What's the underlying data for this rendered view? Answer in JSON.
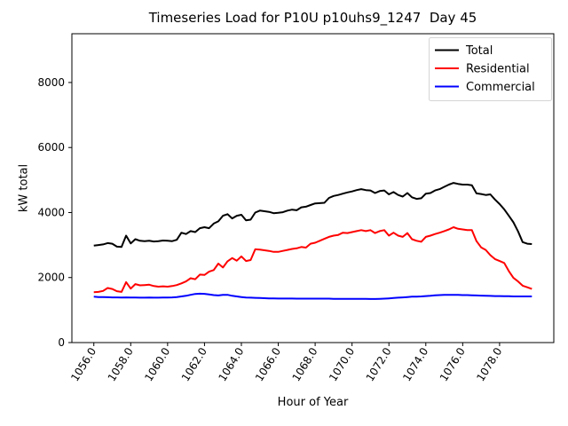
{
  "chart_data": {
    "type": "line",
    "title": "Timeseries Load for P10U p10uhs9_1247  Day 45",
    "xlabel": "Hour of Year",
    "ylabel": "kW total",
    "xlim": [
      1054.81,
      1080.94
    ],
    "ylim": [
      0,
      9500
    ],
    "grid": false,
    "legend_position": "upper-right",
    "x_tick_values": [
      1056,
      1058,
      1060,
      1062,
      1064,
      1066,
      1068,
      1070,
      1072,
      1074,
      1076,
      1078
    ],
    "x_tick_labels": [
      "1056.0",
      "1058.0",
      "1060.0",
      "1062.0",
      "1064.0",
      "1066.0",
      "1068.0",
      "1070.0",
      "1072.0",
      "1074.0",
      "1076.0",
      "1078.0"
    ],
    "y_tick_values": [
      0,
      2000,
      4000,
      6000,
      8000
    ],
    "y_tick_labels": [
      "0",
      "2000",
      "4000",
      "6000",
      "8000"
    ],
    "x": [
      1056.0,
      1056.25,
      1056.5,
      1056.75,
      1057.0,
      1057.25,
      1057.5,
      1057.75,
      1058.0,
      1058.25,
      1058.5,
      1058.75,
      1059.0,
      1059.25,
      1059.5,
      1059.75,
      1060.0,
      1060.25,
      1060.5,
      1060.75,
      1061.0,
      1061.25,
      1061.5,
      1061.75,
      1062.0,
      1062.25,
      1062.5,
      1062.75,
      1063.0,
      1063.25,
      1063.5,
      1063.75,
      1064.0,
      1064.25,
      1064.5,
      1064.75,
      1065.0,
      1065.25,
      1065.5,
      1065.75,
      1066.0,
      1066.25,
      1066.5,
      1066.75,
      1067.0,
      1067.25,
      1067.5,
      1067.75,
      1068.0,
      1068.25,
      1068.5,
      1068.75,
      1069.0,
      1069.25,
      1069.5,
      1069.75,
      1070.0,
      1070.25,
      1070.5,
      1070.75,
      1071.0,
      1071.25,
      1071.5,
      1071.75,
      1072.0,
      1072.25,
      1072.5,
      1072.75,
      1073.0,
      1073.25,
      1073.5,
      1073.75,
      1074.0,
      1074.25,
      1074.5,
      1074.75,
      1075.0,
      1075.25,
      1075.5,
      1075.75,
      1076.0,
      1076.25,
      1076.5,
      1076.75,
      1077.0,
      1077.25,
      1077.5,
      1077.75,
      1078.0,
      1078.25,
      1078.5,
      1078.75,
      1079.0,
      1079.25,
      1079.5,
      1079.75
    ],
    "series": [
      {
        "name": "Total",
        "color": "#000000",
        "values": [
          2980,
          3000,
          3020,
          3060,
          3040,
          2950,
          2940,
          3290,
          3050,
          3180,
          3130,
          3120,
          3130,
          3110,
          3120,
          3140,
          3130,
          3120,
          3160,
          3380,
          3340,
          3430,
          3400,
          3520,
          3550,
          3520,
          3660,
          3730,
          3900,
          3950,
          3820,
          3900,
          3930,
          3760,
          3780,
          4000,
          4060,
          4040,
          4020,
          3980,
          3990,
          4010,
          4060,
          4090,
          4070,
          4160,
          4180,
          4230,
          4280,
          4290,
          4300,
          4450,
          4510,
          4540,
          4580,
          4620,
          4650,
          4690,
          4720,
          4690,
          4680,
          4600,
          4660,
          4680,
          4560,
          4630,
          4540,
          4490,
          4600,
          4470,
          4420,
          4440,
          4580,
          4600,
          4680,
          4720,
          4790,
          4860,
          4910,
          4880,
          4860,
          4860,
          4840,
          4590,
          4570,
          4540,
          4560,
          4400,
          4260,
          4100,
          3900,
          3700,
          3420,
          3090,
          3040,
          3030
        ]
      },
      {
        "name": "Residential",
        "color": "#ff0000",
        "values": [
          1550,
          1560,
          1590,
          1680,
          1650,
          1580,
          1560,
          1860,
          1660,
          1800,
          1760,
          1770,
          1780,
          1740,
          1720,
          1730,
          1720,
          1740,
          1770,
          1820,
          1880,
          1980,
          1950,
          2090,
          2080,
          2180,
          2230,
          2430,
          2310,
          2500,
          2600,
          2520,
          2650,
          2510,
          2540,
          2870,
          2860,
          2840,
          2820,
          2790,
          2790,
          2820,
          2850,
          2880,
          2900,
          2940,
          2920,
          3040,
          3070,
          3130,
          3190,
          3250,
          3290,
          3310,
          3380,
          3370,
          3400,
          3430,
          3460,
          3430,
          3460,
          3370,
          3430,
          3460,
          3290,
          3380,
          3290,
          3250,
          3370,
          3180,
          3130,
          3100,
          3250,
          3290,
          3340,
          3380,
          3430,
          3480,
          3550,
          3500,
          3480,
          3460,
          3460,
          3120,
          2930,
          2850,
          2690,
          2570,
          2510,
          2450,
          2200,
          1990,
          1880,
          1750,
          1700,
          1650
        ]
      },
      {
        "name": "Commercial",
        "color": "#0000ff",
        "values": [
          1410,
          1400,
          1400,
          1395,
          1390,
          1390,
          1385,
          1390,
          1385,
          1385,
          1380,
          1380,
          1385,
          1380,
          1380,
          1385,
          1385,
          1390,
          1400,
          1420,
          1440,
          1470,
          1495,
          1505,
          1500,
          1480,
          1460,
          1450,
          1465,
          1470,
          1440,
          1420,
          1400,
          1385,
          1380,
          1375,
          1370,
          1365,
          1360,
          1360,
          1355,
          1355,
          1355,
          1355,
          1350,
          1350,
          1350,
          1350,
          1350,
          1350,
          1350,
          1350,
          1345,
          1345,
          1345,
          1345,
          1345,
          1345,
          1345,
          1345,
          1340,
          1340,
          1345,
          1350,
          1360,
          1370,
          1380,
          1390,
          1400,
          1410,
          1415,
          1420,
          1430,
          1440,
          1455,
          1460,
          1465,
          1465,
          1465,
          1465,
          1460,
          1460,
          1455,
          1450,
          1445,
          1440,
          1435,
          1430,
          1430,
          1425,
          1425,
          1420,
          1420,
          1420,
          1420,
          1420
        ]
      }
    ]
  }
}
